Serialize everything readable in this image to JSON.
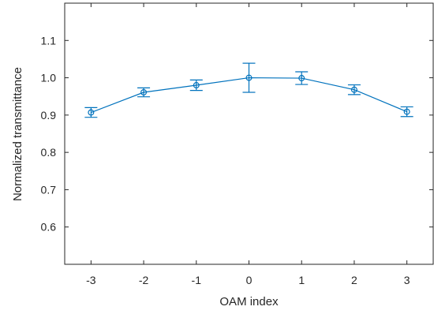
{
  "chart_data": {
    "type": "line",
    "title": "",
    "xlabel": "OAM index",
    "ylabel": "Normalized transmittance",
    "x": [
      -3,
      -2,
      -1,
      0,
      1,
      2,
      3
    ],
    "series": [
      {
        "values": [
          0.907,
          0.961,
          0.98,
          1.0,
          0.999,
          0.968,
          0.909
        ],
        "errors": [
          0.013,
          0.012,
          0.014,
          0.039,
          0.017,
          0.013,
          0.013
        ],
        "color": "#0072BD",
        "marker": "circle"
      }
    ],
    "xlim": [
      -3.5,
      3.5
    ],
    "ylim": [
      0.5,
      1.2
    ],
    "xticks": [
      "-3",
      "-2",
      "-1",
      "0",
      "1",
      "2",
      "3"
    ],
    "yticks": [
      "0.6",
      "0.7",
      "0.8",
      "0.9",
      "1.0",
      "1.1"
    ],
    "grid": false,
    "legend": "none"
  }
}
